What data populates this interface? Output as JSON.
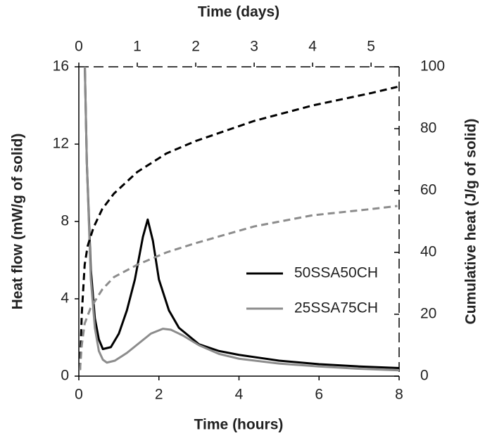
{
  "chart_data": {
    "type": "line",
    "xlabel": "Time (hours)",
    "x2label": "Time (days)",
    "ylabel": "Heat flow  (mW/g of solid)",
    "y2label": "Cumulative heat (J/g of solid)",
    "xlim": [
      0,
      8
    ],
    "xticks": [
      0,
      2,
      4,
      6,
      8
    ],
    "x2lim": [
      0,
      5.48
    ],
    "x2ticks": [
      0,
      1,
      2,
      3,
      4,
      5
    ],
    "ylim": [
      0,
      16
    ],
    "yticks": [
      0,
      4,
      8,
      12,
      16
    ],
    "y2lim": [
      0,
      100
    ],
    "y2ticks": [
      0,
      20,
      40,
      60,
      80,
      100
    ],
    "grid": false,
    "legend": "right",
    "series": [
      {
        "name": "50SSA50CH",
        "color": "#000000",
        "dash": false,
        "x": [
          0.15,
          0.2,
          0.3,
          0.4,
          0.5,
          0.6,
          0.8,
          1.0,
          1.2,
          1.4,
          1.6,
          1.72,
          1.85,
          2.0,
          2.25,
          2.5,
          3.0,
          3.5,
          4,
          5,
          6,
          7,
          8
        ],
        "values": [
          16,
          11,
          5.5,
          3,
          1.9,
          1.4,
          1.5,
          2.2,
          3.4,
          5.0,
          7.2,
          8.1,
          7.0,
          5.0,
          3.4,
          2.5,
          1.65,
          1.3,
          1.1,
          0.8,
          0.62,
          0.5,
          0.42
        ]
      },
      {
        "name": "25SSA75CH",
        "color": "#8c8c8c",
        "dash": false,
        "x": [
          0.15,
          0.2,
          0.3,
          0.4,
          0.5,
          0.6,
          0.7,
          0.9,
          1.2,
          1.5,
          1.8,
          2.1,
          2.3,
          2.6,
          3,
          3.5,
          4,
          5,
          6,
          7,
          8
        ],
        "values": [
          16,
          11,
          5,
          2.5,
          1.3,
          0.85,
          0.7,
          0.8,
          1.2,
          1.7,
          2.2,
          2.45,
          2.4,
          2.1,
          1.6,
          1.15,
          0.9,
          0.65,
          0.5,
          0.38,
          0.3
        ]
      },
      {
        "color": "#000000",
        "dash": true,
        "axis": "y2",
        "xaxis": "x2",
        "x": [
          0.02,
          0.05,
          0.1,
          0.15,
          0.25,
          0.4,
          0.6,
          1,
          1.5,
          2,
          3,
          4,
          5,
          5.45
        ],
        "values": [
          2,
          20,
          36,
          42,
          48,
          54,
          59,
          66,
          72,
          76,
          82.5,
          87.5,
          91.5,
          93.5
        ]
      },
      {
        "color": "#8c8c8c",
        "dash": true,
        "axis": "y2",
        "xaxis": "x2",
        "x": [
          0.02,
          0.05,
          0.1,
          0.2,
          0.4,
          0.6,
          1,
          1.5,
          2,
          3,
          4,
          5,
          5.45
        ],
        "values": [
          2,
          10,
          17,
          22,
          28,
          32,
          36,
          40,
          43,
          48.4,
          52,
          54,
          55
        ]
      }
    ]
  }
}
